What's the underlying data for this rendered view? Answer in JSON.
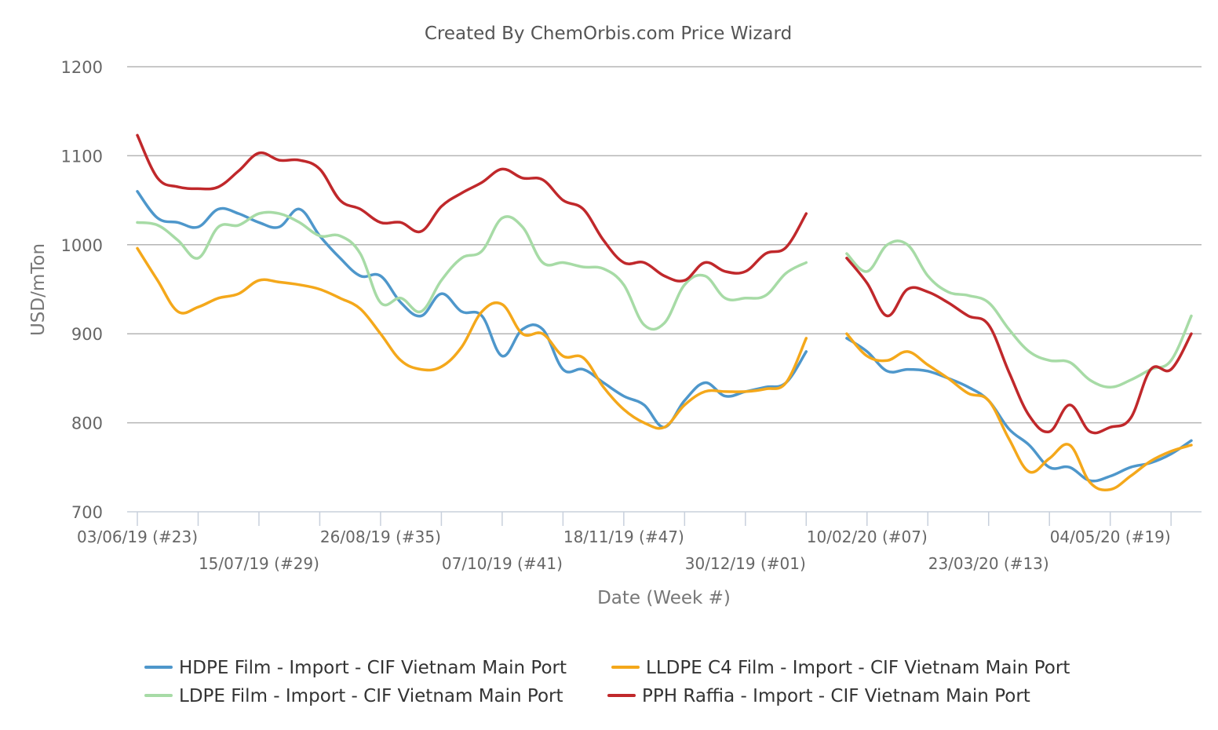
{
  "chart_data": {
    "type": "line",
    "title": "Created By ChemOrbis.com Price Wizard",
    "xlabel": "Date (Week #)",
    "ylabel": "USD/mTon",
    "ylim": [
      700,
      1200
    ],
    "yticks": [
      700,
      800,
      900,
      1000,
      1100,
      1200
    ],
    "grid": true,
    "legend_position": "bottom",
    "x_range_week_index": [
      0,
      52
    ],
    "x_tick_labels": [
      {
        "week": 0,
        "label": "03/06/19 (#23)"
      },
      {
        "week": 6,
        "label": "15/07/19 (#29)"
      },
      {
        "week": 12,
        "label": "26/08/19 (#35)"
      },
      {
        "week": 18,
        "label": "07/10/19 (#41)"
      },
      {
        "week": 24,
        "label": "18/11/19 (#47)"
      },
      {
        "week": 30,
        "label": "30/12/19 (#01)"
      },
      {
        "week": 36,
        "label": "10/02/20 (#07)"
      },
      {
        "week": 42,
        "label": "23/03/20 (#13)"
      },
      {
        "week": 48,
        "label": "04/05/20 (#19)"
      }
    ],
    "series": [
      {
        "name": "HDPE Film - Import - CIF Vietnam Main Port",
        "color": "#4e97cb",
        "segments": [
          [
            [
              0,
              1060
            ],
            [
              1,
              1030
            ],
            [
              2,
              1025
            ],
            [
              3,
              1020
            ],
            [
              4,
              1040
            ],
            [
              5,
              1035
            ],
            [
              6,
              1025
            ],
            [
              7,
              1020
            ],
            [
              8,
              1040
            ],
            [
              9,
              1010
            ],
            [
              10,
              985
            ],
            [
              11,
              965
            ],
            [
              12,
              965
            ],
            [
              13,
              935
            ],
            [
              14,
              920
            ],
            [
              15,
              945
            ],
            [
              16,
              925
            ],
            [
              17,
              920
            ],
            [
              18,
              875
            ],
            [
              19,
              905
            ],
            [
              20,
              905
            ],
            [
              21,
              860
            ],
            [
              22,
              860
            ],
            [
              23,
              845
            ],
            [
              24,
              830
            ],
            [
              25,
              820
            ],
            [
              26,
              795
            ],
            [
              27,
              825
            ],
            [
              28,
              845
            ],
            [
              29,
              830
            ],
            [
              30,
              835
            ],
            [
              31,
              840
            ],
            [
              32,
              845
            ],
            [
              33,
              880
            ]
          ],
          [
            [
              35,
              895
            ],
            [
              36,
              880
            ],
            [
              37,
              858
            ],
            [
              38,
              860
            ],
            [
              39,
              858
            ],
            [
              40,
              850
            ],
            [
              41,
              840
            ],
            [
              42,
              825
            ],
            [
              43,
              793
            ],
            [
              44,
              775
            ],
            [
              45,
              750
            ],
            [
              46,
              750
            ],
            [
              47,
              735
            ],
            [
              48,
              740
            ],
            [
              49,
              750
            ],
            [
              50,
              755
            ],
            [
              51,
              765
            ],
            [
              52,
              780
            ]
          ]
        ]
      },
      {
        "name": "LLDPE C4 Film - Import - CIF Vietnam Main Port",
        "color": "#f4a81b",
        "segments": [
          [
            [
              0,
              996
            ],
            [
              1,
              960
            ],
            [
              2,
              925
            ],
            [
              3,
              930
            ],
            [
              4,
              940
            ],
            [
              5,
              945
            ],
            [
              6,
              960
            ],
            [
              7,
              958
            ],
            [
              8,
              955
            ],
            [
              9,
              950
            ],
            [
              10,
              940
            ],
            [
              11,
              928
            ],
            [
              12,
              900
            ],
            [
              13,
              870
            ],
            [
              14,
              860
            ],
            [
              15,
              863
            ],
            [
              16,
              885
            ],
            [
              17,
              925
            ],
            [
              18,
              933
            ],
            [
              19,
              900
            ],
            [
              20,
              900
            ],
            [
              21,
              875
            ],
            [
              22,
              873
            ],
            [
              23,
              840
            ],
            [
              24,
              815
            ],
            [
              25,
              800
            ],
            [
              26,
              795
            ],
            [
              27,
              820
            ],
            [
              28,
              835
            ],
            [
              29,
              835
            ],
            [
              30,
              835
            ],
            [
              31,
              838
            ],
            [
              32,
              845
            ],
            [
              33,
              895
            ]
          ],
          [
            [
              35,
              900
            ],
            [
              36,
              875
            ],
            [
              37,
              870
            ],
            [
              38,
              880
            ],
            [
              39,
              865
            ],
            [
              40,
              850
            ],
            [
              41,
              833
            ],
            [
              42,
              825
            ],
            [
              43,
              782
            ],
            [
              44,
              745
            ],
            [
              45,
              760
            ],
            [
              46,
              775
            ],
            [
              47,
              733
            ],
            [
              48,
              725
            ],
            [
              49,
              740
            ],
            [
              50,
              757
            ],
            [
              51,
              768
            ],
            [
              52,
              775
            ]
          ]
        ]
      },
      {
        "name": "LDPE Film - Import - CIF Vietnam Main Port",
        "color": "#a7dba6",
        "segments": [
          [
            [
              0,
              1025
            ],
            [
              1,
              1022
            ],
            [
              2,
              1005
            ],
            [
              3,
              985
            ],
            [
              4,
              1020
            ],
            [
              5,
              1022
            ],
            [
              6,
              1035
            ],
            [
              7,
              1035
            ],
            [
              8,
              1025
            ],
            [
              9,
              1010
            ],
            [
              10,
              1010
            ],
            [
              11,
              990
            ],
            [
              12,
              935
            ],
            [
              13,
              940
            ],
            [
              14,
              925
            ],
            [
              15,
              960
            ],
            [
              16,
              985
            ],
            [
              17,
              993
            ],
            [
              18,
              1030
            ],
            [
              19,
              1020
            ],
            [
              20,
              980
            ],
            [
              21,
              980
            ],
            [
              22,
              975
            ],
            [
              23,
              973
            ],
            [
              24,
              955
            ],
            [
              25,
              910
            ],
            [
              26,
              912
            ],
            [
              27,
              955
            ],
            [
              28,
              965
            ],
            [
              29,
              940
            ],
            [
              30,
              940
            ],
            [
              31,
              943
            ],
            [
              32,
              968
            ],
            [
              33,
              980
            ]
          ],
          [
            [
              35,
              990
            ],
            [
              36,
              970
            ],
            [
              37,
              1000
            ],
            [
              38,
              1000
            ],
            [
              39,
              965
            ],
            [
              40,
              947
            ],
            [
              41,
              943
            ],
            [
              42,
              935
            ],
            [
              43,
              905
            ],
            [
              44,
              880
            ],
            [
              45,
              870
            ],
            [
              46,
              868
            ],
            [
              47,
              848
            ],
            [
              48,
              840
            ],
            [
              49,
              848
            ],
            [
              50,
              860
            ],
            [
              51,
              870
            ],
            [
              52,
              920
            ]
          ]
        ]
      },
      {
        "name": "PPH Raffia - Import - CIF Vietnam Main Port",
        "color": "#c0282b",
        "segments": [
          [
            [
              0,
              1123
            ],
            [
              1,
              1075
            ],
            [
              2,
              1065
            ],
            [
              3,
              1063
            ],
            [
              4,
              1065
            ],
            [
              5,
              1083
            ],
            [
              6,
              1103
            ],
            [
              7,
              1095
            ],
            [
              8,
              1095
            ],
            [
              9,
              1085
            ],
            [
              10,
              1050
            ],
            [
              11,
              1040
            ],
            [
              12,
              1025
            ],
            [
              13,
              1025
            ],
            [
              14,
              1015
            ],
            [
              15,
              1043
            ],
            [
              16,
              1058
            ],
            [
              17,
              1070
            ],
            [
              18,
              1085
            ],
            [
              19,
              1075
            ],
            [
              20,
              1073
            ],
            [
              21,
              1050
            ],
            [
              22,
              1040
            ],
            [
              23,
              1005
            ],
            [
              24,
              980
            ],
            [
              25,
              980
            ],
            [
              26,
              965
            ],
            [
              27,
              960
            ],
            [
              28,
              980
            ],
            [
              29,
              970
            ],
            [
              30,
              970
            ],
            [
              31,
              990
            ],
            [
              32,
              997
            ],
            [
              33,
              1035
            ]
          ],
          [
            [
              35,
              985
            ],
            [
              36,
              957
            ],
            [
              37,
              920
            ],
            [
              38,
              950
            ],
            [
              39,
              947
            ],
            [
              40,
              935
            ],
            [
              41,
              920
            ],
            [
              42,
              910
            ],
            [
              43,
              857
            ],
            [
              44,
              808
            ],
            [
              45,
              790
            ],
            [
              46,
              820
            ],
            [
              47,
              790
            ],
            [
              48,
              795
            ],
            [
              49,
              805
            ],
            [
              50,
              860
            ],
            [
              51,
              860
            ],
            [
              52,
              900
            ]
          ]
        ]
      }
    ]
  }
}
